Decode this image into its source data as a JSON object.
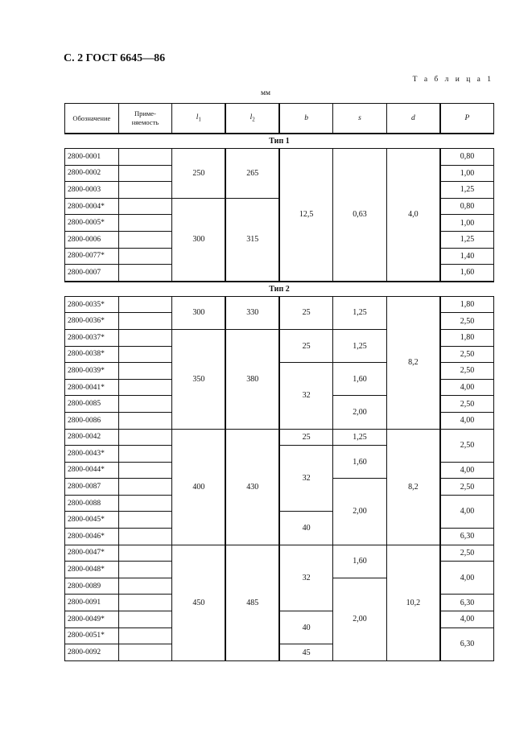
{
  "header": {
    "title": "С. 2 ГОСТ 6645—86",
    "table_caption": "Т а б л и ц а  1",
    "unit": "мм"
  },
  "table": {
    "columns": [
      {
        "label": "Обозначение"
      },
      {
        "label": "Приме-\nняемость"
      },
      {
        "label": "l",
        "sub": "1"
      },
      {
        "label": "l",
        "sub": "2"
      },
      {
        "label": "b"
      },
      {
        "label": "s"
      },
      {
        "label": "d"
      },
      {
        "label": "P"
      }
    ],
    "sections": [
      {
        "label": "Тип 1",
        "designations": [
          "2800-0001",
          "2800-0002",
          "2800-0003",
          "2800-0004*",
          "2800-0005*",
          "2800-0006",
          "2800-0077*",
          "2800-0007"
        ],
        "l1": [
          {
            "v": "250",
            "rs": 3
          },
          {
            "v": "300",
            "rs": 5
          }
        ],
        "l2": [
          {
            "v": "265",
            "rs": 3
          },
          {
            "v": "315",
            "rs": 5
          }
        ],
        "b": [
          {
            "v": "12,5",
            "rs": 8
          }
        ],
        "s": [
          {
            "v": "0,63",
            "rs": 8
          }
        ],
        "d": [
          {
            "v": "4,0",
            "rs": 8
          }
        ],
        "P": [
          {
            "v": "0,80",
            "rs": 1
          },
          {
            "v": "1,00",
            "rs": 1
          },
          {
            "v": "1,25",
            "rs": 1
          },
          {
            "v": "0,80",
            "rs": 1
          },
          {
            "v": "1,00",
            "rs": 1
          },
          {
            "v": "1,25",
            "rs": 1
          },
          {
            "v": "1,40",
            "rs": 1
          },
          {
            "v": "1,60",
            "rs": 1
          }
        ]
      },
      {
        "label": "Тип 2",
        "designations": [
          "2800-0035*",
          "2800-0036*",
          "2800-0037*",
          "2800-0038*",
          "2800-0039*",
          "2800-0041*",
          "2800-0085",
          "2800-0086",
          "2800-0042",
          "2800-0043*",
          "2800-0044*",
          "2800-0087",
          "2800-0088",
          "2800-0045*",
          "2800-0046*",
          "2800-0047*",
          "2800-0048*",
          "2800-0089",
          "2800-0091",
          "2800-0049*",
          "2800-0051*",
          "2800-0092"
        ],
        "l1": [
          {
            "v": "300",
            "rs": 2
          },
          {
            "v": "350",
            "rs": 6
          },
          {
            "v": "400",
            "rs": 7
          },
          {
            "v": "450",
            "rs": 7
          }
        ],
        "l2": [
          {
            "v": "330",
            "rs": 2
          },
          {
            "v": "380",
            "rs": 6
          },
          {
            "v": "430",
            "rs": 7
          },
          {
            "v": "485",
            "rs": 7
          }
        ],
        "b": [
          {
            "v": "25",
            "rs": 2
          },
          {
            "v": "25",
            "rs": 2
          },
          {
            "v": "32",
            "rs": 4
          },
          {
            "v": "25",
            "rs": 1
          },
          {
            "v": "32",
            "rs": 4
          },
          {
            "v": "40",
            "rs": 2
          },
          {
            "v": "32",
            "rs": 4
          },
          {
            "v": "40",
            "rs": 2
          },
          {
            "v": "45",
            "rs": 1
          }
        ],
        "s": [
          {
            "v": "1,25",
            "rs": 2
          },
          {
            "v": "1,25",
            "rs": 2
          },
          {
            "v": "1,60",
            "rs": 2
          },
          {
            "v": "2,00",
            "rs": 2
          },
          {
            "v": "1,25",
            "rs": 1
          },
          {
            "v": "1,60",
            "rs": 2
          },
          {
            "v": "2,00",
            "rs": 4
          },
          {
            "v": "1,60",
            "rs": 2
          },
          {
            "v": "2,00",
            "rs": 5
          }
        ],
        "d": [
          {
            "v": "8,2",
            "rs": 8
          },
          {
            "v": "8,2",
            "rs": 7
          },
          {
            "v": "10,2",
            "rs": 7
          }
        ],
        "P": [
          {
            "v": "1,80",
            "rs": 1
          },
          {
            "v": "2,50",
            "rs": 1
          },
          {
            "v": "1,80",
            "rs": 1
          },
          {
            "v": "2,50",
            "rs": 1
          },
          {
            "v": "2,50",
            "rs": 1
          },
          {
            "v": "4,00",
            "rs": 1
          },
          {
            "v": "2,50",
            "rs": 1
          },
          {
            "v": "4,00",
            "rs": 1
          },
          {
            "v": "2,50",
            "rs": 2
          },
          {
            "v": "4,00",
            "rs": 1
          },
          {
            "v": "2,50",
            "rs": 1
          },
          {
            "v": "4,00",
            "rs": 2
          },
          {
            "v": "6,30",
            "rs": 1
          },
          {
            "v": "2,50",
            "rs": 1
          },
          {
            "v": "4,00",
            "rs": 2
          },
          {
            "v": "6,30",
            "rs": 1
          },
          {
            "v": "4,00",
            "rs": 1
          },
          {
            "v": "6,30",
            "rs": 2
          }
        ]
      }
    ]
  }
}
